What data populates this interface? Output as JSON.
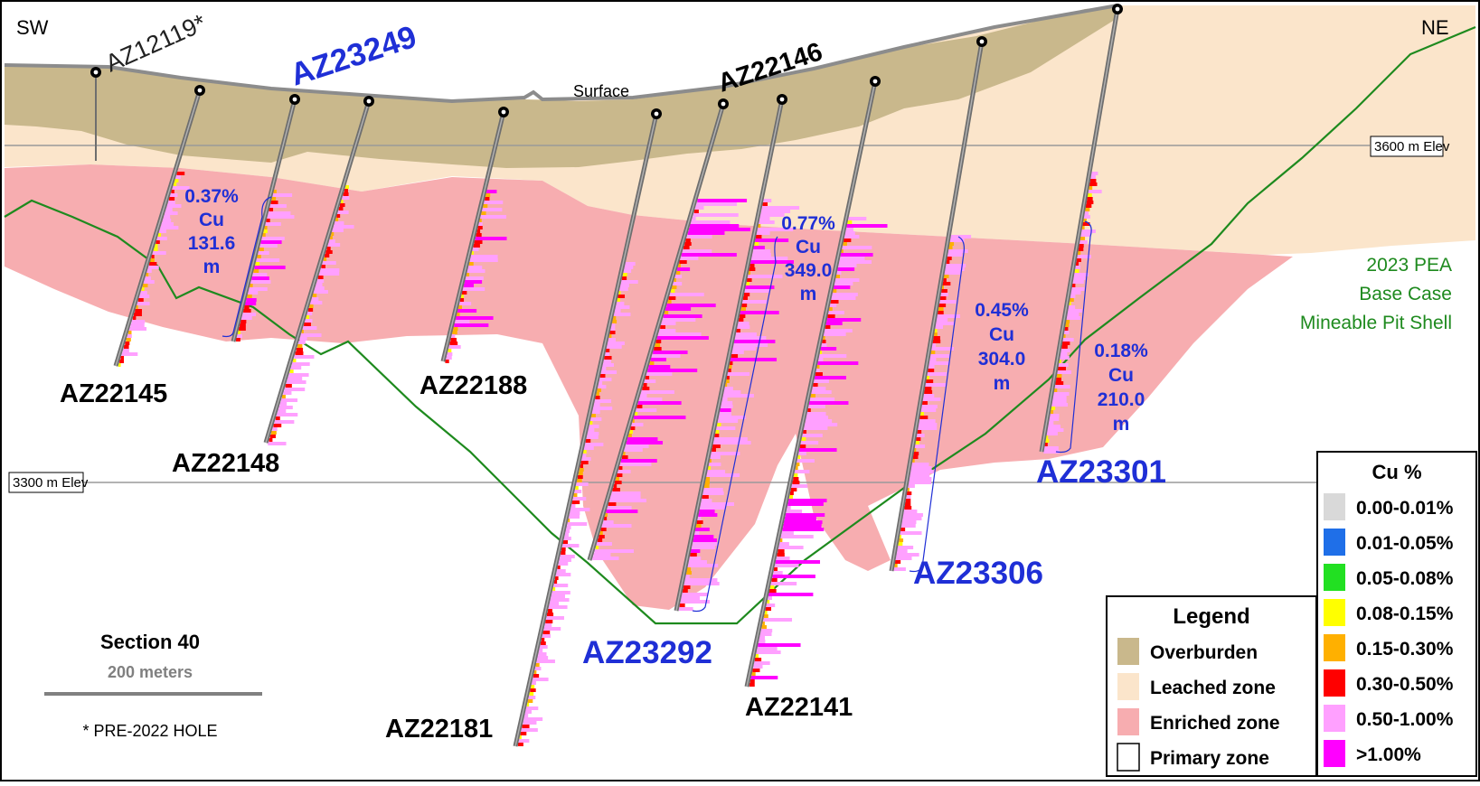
{
  "orientation": {
    "left": "SW",
    "right": "NE"
  },
  "surface_label": "Surface",
  "elevation_lines": [
    {
      "label": "3600 m Elev"
    },
    {
      "label": "3300 m Elev"
    }
  ],
  "pit_shell_label": [
    "2023 PEA",
    "Base Case",
    "Mineable Pit Shell"
  ],
  "section": {
    "title": "Section 40",
    "scale_label": "200 meters",
    "note": "* PRE-2022 HOLE"
  },
  "holes": [
    {
      "id": "AZ12119*",
      "style": "pre2022"
    },
    {
      "id": "AZ23249",
      "style": "blue"
    },
    {
      "id": "AZ22146",
      "style": "black"
    },
    {
      "id": "AZ22145",
      "style": "black"
    },
    {
      "id": "AZ22148",
      "style": "black"
    },
    {
      "id": "AZ22188",
      "style": "black"
    },
    {
      "id": "AZ22181",
      "style": "black"
    },
    {
      "id": "AZ23292",
      "style": "blue"
    },
    {
      "id": "AZ22141",
      "style": "black"
    },
    {
      "id": "AZ23306",
      "style": "blue"
    },
    {
      "id": "AZ23301",
      "style": "blue"
    }
  ],
  "intervals": [
    {
      "grade": "0.37%",
      "element": "Cu",
      "length": "131.6",
      "unit": "m"
    },
    {
      "grade": "0.77%",
      "element": "Cu",
      "length": "349.0",
      "unit": "m"
    },
    {
      "grade": "0.45%",
      "element": "Cu",
      "length": "304.0",
      "unit": "m"
    },
    {
      "grade": "0.18%",
      "element": "Cu",
      "length": "210.0",
      "unit": "m"
    }
  ],
  "legend": {
    "title": "Legend",
    "items": [
      {
        "label": "Overburden",
        "color": "#c9b88c"
      },
      {
        "label": "Leached zone",
        "color": "#fbe5cb"
      },
      {
        "label": "Enriched zone",
        "color": "#f7adb0"
      },
      {
        "label": "Primary zone",
        "color": "#ffffff"
      }
    ]
  },
  "cu_legend": {
    "title": "Cu %",
    "items": [
      {
        "label": "0.00-0.01%",
        "color": "#d9d9d9"
      },
      {
        "label": "0.01-0.05%",
        "color": "#1f6fe8"
      },
      {
        "label": "0.05-0.08%",
        "color": "#22e022"
      },
      {
        "label": "0.08-0.15%",
        "color": "#ffff00"
      },
      {
        "label": "0.15-0.30%",
        "color": "#ffb000"
      },
      {
        "label": "0.30-0.50%",
        "color": "#ff0000"
      },
      {
        "label": "0.50-1.00%",
        "color": "#ffa0ff"
      },
      {
        "label": ">1.00%",
        "color": "#ff00ff"
      }
    ]
  },
  "colors": {
    "overburden": "#c9b88c",
    "leached": "#fbe5cb",
    "enriched": "#f7adb0",
    "pit_shell": "#1e8a1e",
    "hole_blue": "#1f2fd6"
  }
}
